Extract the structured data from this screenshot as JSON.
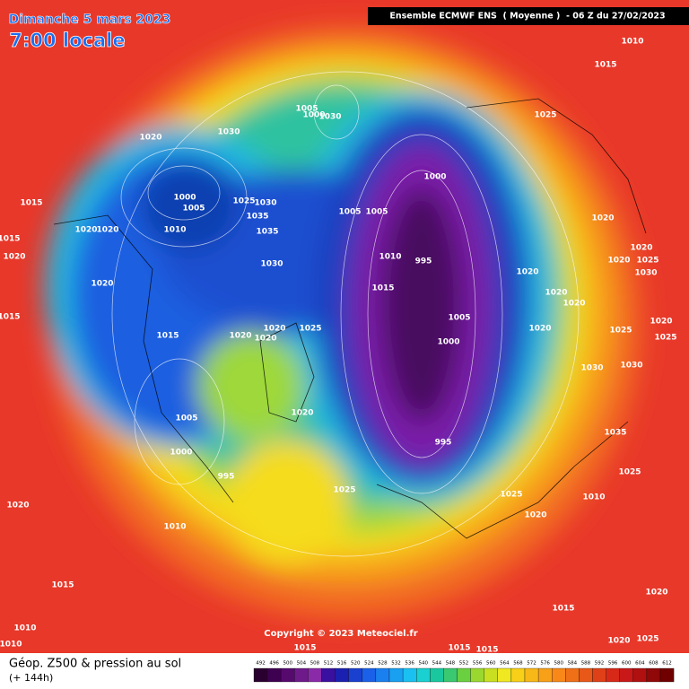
{
  "header": {
    "date": "Dimanche 5 mars 2023",
    "time": "7:00 locale",
    "model": "Ensemble ECMWF ENS  ( Moyenne )  - 06 Z du 27/02/2023"
  },
  "footer": {
    "title": "Géop. Z500 & pression au sol",
    "subtitle": "(+ 144h)",
    "copyright": "Copyright © 2023 Meteociel.fr"
  },
  "colorbar": {
    "ticks": [
      492,
      496,
      500,
      504,
      508,
      512,
      516,
      520,
      524,
      528,
      532,
      536,
      540,
      544,
      548,
      552,
      556,
      560,
      564,
      568,
      572,
      576,
      580,
      584,
      588,
      592,
      596,
      600,
      604,
      608,
      612
    ]
  },
  "pressure_labels": [
    "1010",
    "1015",
    "1005",
    "1000",
    "1030",
    "1025",
    "1020",
    "1030",
    "1000",
    "1000",
    "1005",
    "1025",
    "1030",
    "1015",
    "1005",
    "1005",
    "1035",
    "1020",
    "1020",
    "1010",
    "1035",
    "1020",
    "1015",
    "1020",
    "1010",
    "995",
    "1030",
    "1020",
    "1020",
    "1025",
    "1020",
    "1030",
    "1015",
    "1020",
    "1020",
    "1020",
    "1015",
    "1005",
    "1015",
    "1020",
    "1020",
    "1020",
    "1025",
    "1000",
    "1020",
    "1025",
    "1025",
    "1020",
    "1030",
    "1030",
    "1020",
    "1005",
    "1000",
    "995",
    "995",
    "1035",
    "1025",
    "1025",
    "1010",
    "1025",
    "1020",
    "1020",
    "1010",
    "1015",
    "1015",
    "1020",
    "1010",
    "1010",
    "1015",
    "1015",
    "1015",
    "1020",
    "1025"
  ]
}
